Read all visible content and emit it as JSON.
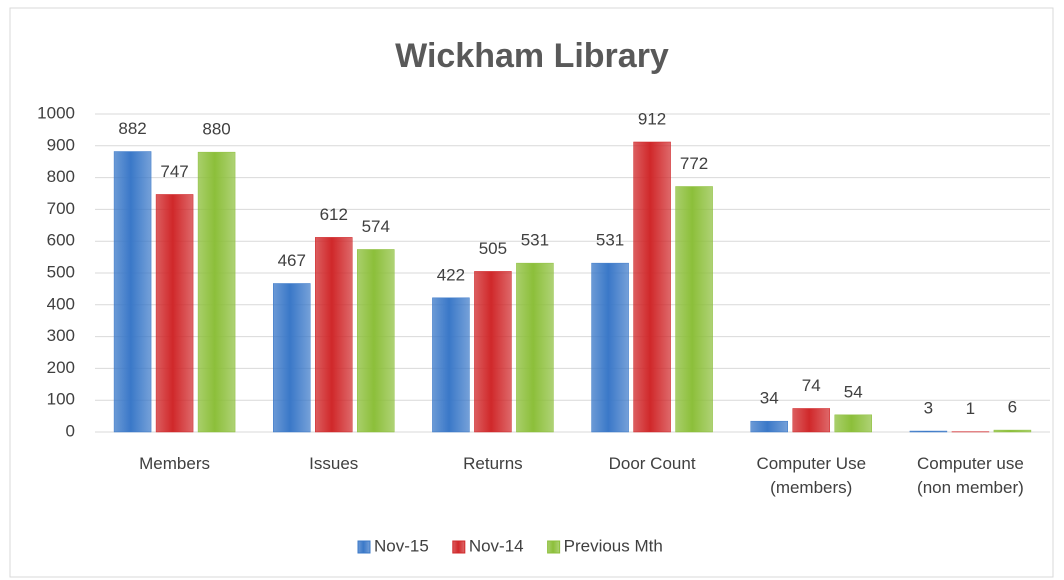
{
  "chart_data": {
    "type": "bar",
    "title": "Wickham Library",
    "categories": [
      "Members",
      "Issues",
      "Returns",
      "Door Count",
      "Computer Use\n(members)",
      "Computer use\n(non member)"
    ],
    "series": [
      {
        "name": "Nov-15",
        "color": "#3a78c8",
        "values": [
          882,
          467,
          422,
          531,
          34,
          3
        ]
      },
      {
        "name": "Nov-14",
        "color": "#d0282a",
        "values": [
          747,
          612,
          505,
          912,
          74,
          1
        ]
      },
      {
        "name": "Previous Mth",
        "color": "#8cbf3a",
        "values": [
          880,
          574,
          531,
          772,
          54,
          6
        ]
      }
    ],
    "ylim": [
      0,
      1000
    ],
    "yticks": [
      0,
      100,
      200,
      300,
      400,
      500,
      600,
      700,
      800,
      900,
      1000
    ],
    "grid": true,
    "legend": "bottom"
  }
}
